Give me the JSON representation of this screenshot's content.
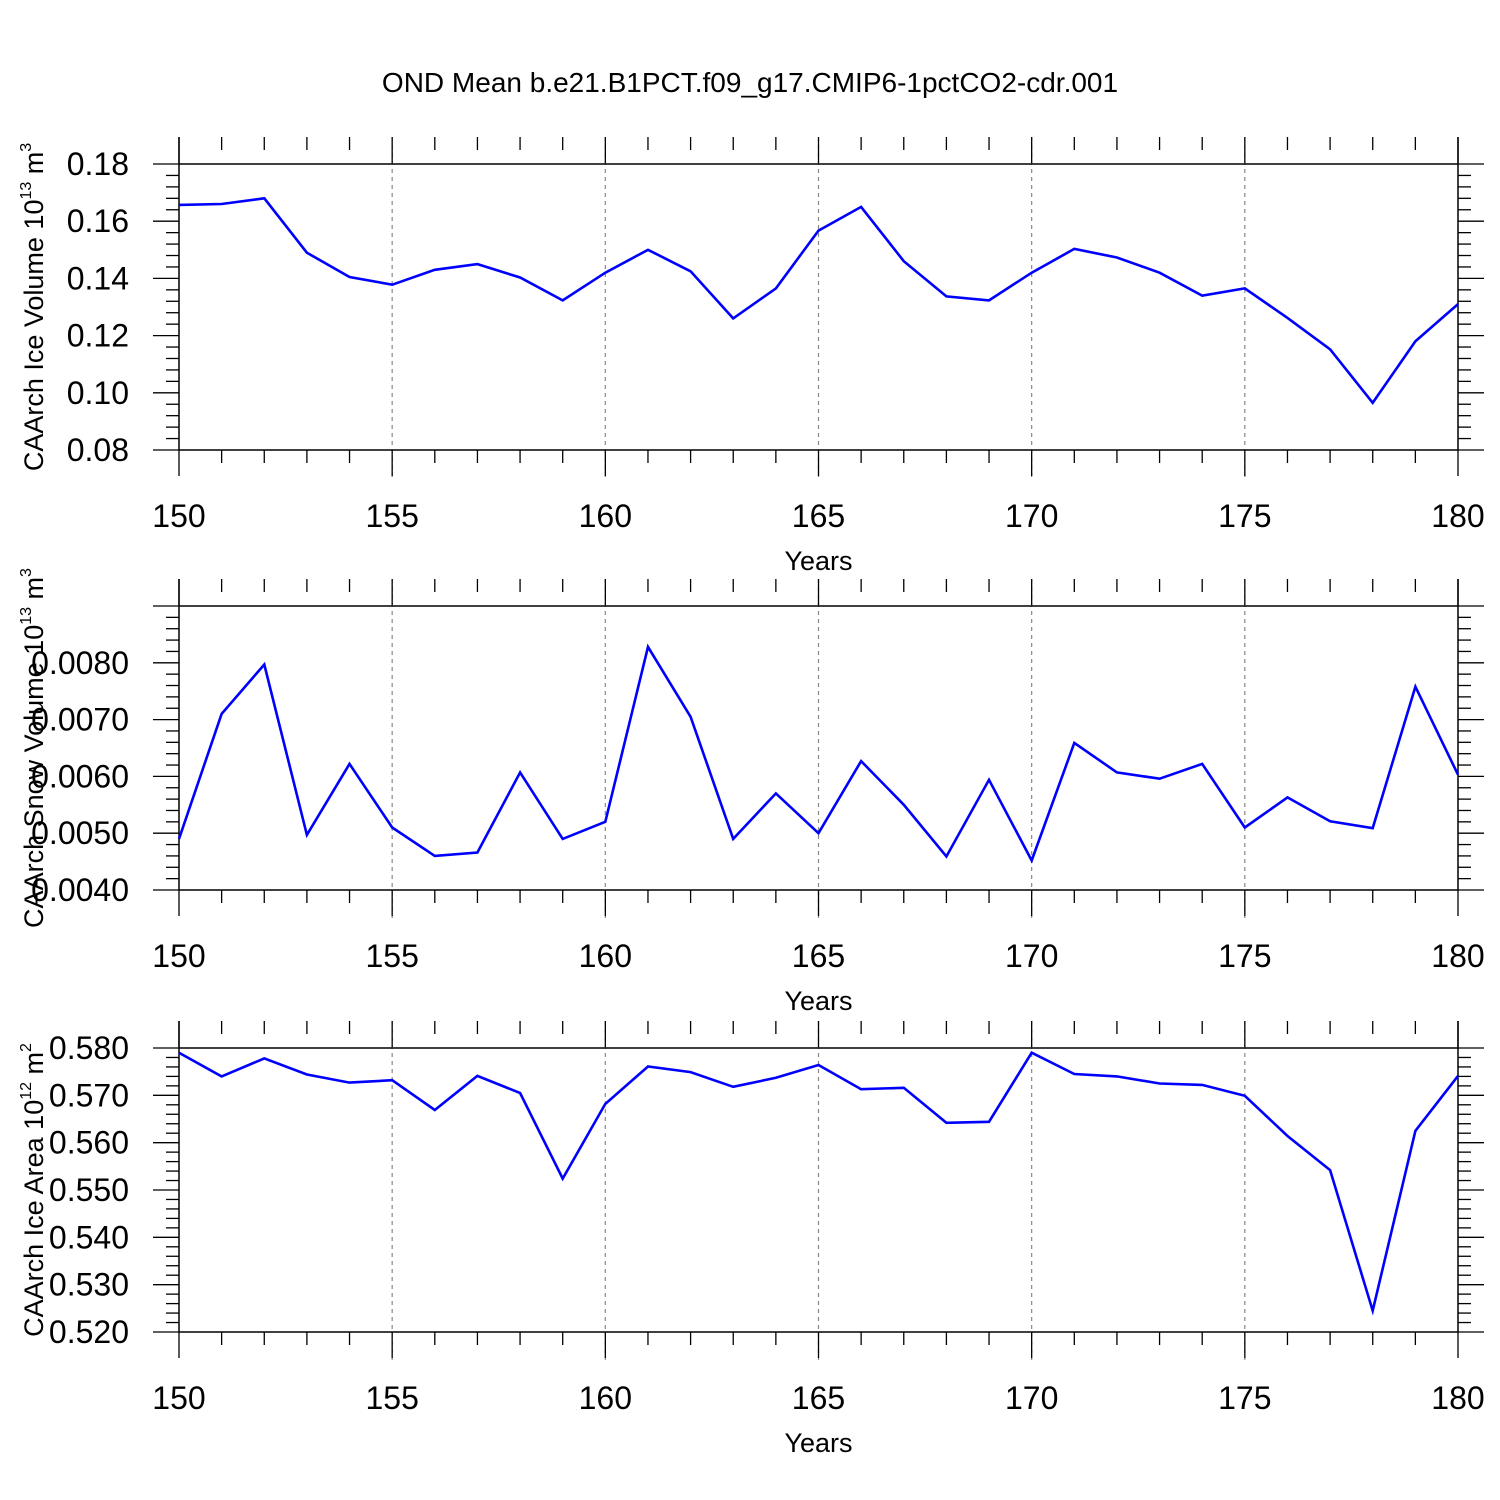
{
  "title": "OND Mean b.e21.B1PCT.f09_g17.CMIP6-1pctCO2-cdr.001",
  "line_color": "#0000ff",
  "chart_data": [
    {
      "type": "line",
      "ylabel": {
        "text": "CAArch Ice Volume 10",
        "exp": "13",
        "unit": " m",
        "unit_exp": "3"
      },
      "xlabel": "Years",
      "xlim": [
        150,
        180
      ],
      "ylim": [
        0.08,
        0.18
      ],
      "xticks": [
        "150",
        "155",
        "160",
        "165",
        "170",
        "175",
        "180"
      ],
      "yticks": [
        "0.08",
        "0.10",
        "0.12",
        "0.14",
        "0.16",
        "0.18"
      ],
      "x": [
        150,
        151,
        152,
        153,
        154,
        155,
        156,
        157,
        158,
        159,
        160,
        161,
        162,
        163,
        164,
        165,
        166,
        167,
        168,
        169,
        170,
        171,
        172,
        173,
        174,
        175,
        176,
        177,
        178,
        179,
        180
      ],
      "values": [
        0.1657,
        0.166,
        0.168,
        0.149,
        0.1405,
        0.1378,
        0.143,
        0.145,
        0.1403,
        0.1323,
        0.142,
        0.15,
        0.1425,
        0.126,
        0.1365,
        0.1567,
        0.165,
        0.146,
        0.1337,
        0.1323,
        0.142,
        0.1503,
        0.1473,
        0.142,
        0.134,
        0.1365,
        0.1262,
        0.1152,
        0.0965,
        0.118,
        0.131
      ]
    },
    {
      "type": "line",
      "ylabel": {
        "text": "CAArch Snow Volume 10",
        "exp": "13",
        "unit": " m",
        "unit_exp": "3"
      },
      "xlabel": "Years",
      "xlim": [
        150,
        180
      ],
      "ylim": [
        0.004,
        0.009
      ],
      "xticks": [
        "150",
        "155",
        "160",
        "165",
        "170",
        "175",
        "180"
      ],
      "yticks": [
        "0.0040",
        "0.0050",
        "0.0060",
        "0.0070",
        "0.0080"
      ],
      "x": [
        150,
        151,
        152,
        153,
        154,
        155,
        156,
        157,
        158,
        159,
        160,
        161,
        162,
        163,
        164,
        165,
        166,
        167,
        168,
        169,
        170,
        171,
        172,
        173,
        174,
        175,
        176,
        177,
        178,
        179,
        180
      ],
      "values": [
        0.0049,
        0.0071,
        0.00797,
        0.00497,
        0.00622,
        0.0051,
        0.0046,
        0.00466,
        0.00607,
        0.0049,
        0.0052,
        0.00828,
        0.00705,
        0.0049,
        0.0057,
        0.005,
        0.00627,
        0.0055,
        0.00459,
        0.00594,
        0.00452,
        0.00659,
        0.00607,
        0.00596,
        0.00622,
        0.0051,
        0.00563,
        0.00521,
        0.00509,
        0.00758,
        0.00603
      ]
    },
    {
      "type": "line",
      "ylabel": {
        "text": "CAArch Ice Area 10",
        "exp": "12",
        "unit": " m",
        "unit_exp": "2"
      },
      "xlabel": "Years",
      "xlim": [
        150,
        180
      ],
      "ylim": [
        0.52,
        0.58
      ],
      "xticks": [
        "150",
        "155",
        "160",
        "165",
        "170",
        "175",
        "180"
      ],
      "yticks": [
        "0.520",
        "0.530",
        "0.540",
        "0.550",
        "0.560",
        "0.570",
        "0.580"
      ],
      "x": [
        150,
        151,
        152,
        153,
        154,
        155,
        156,
        157,
        158,
        159,
        160,
        161,
        162,
        163,
        164,
        165,
        166,
        167,
        168,
        169,
        170,
        171,
        172,
        173,
        174,
        175,
        176,
        177,
        178,
        179,
        180
      ],
      "values": [
        0.579,
        0.574,
        0.5778,
        0.5744,
        0.5727,
        0.5732,
        0.5669,
        0.5741,
        0.5705,
        0.5524,
        0.5682,
        0.5761,
        0.5749,
        0.5718,
        0.5737,
        0.5764,
        0.5713,
        0.5716,
        0.5642,
        0.5644,
        0.579,
        0.5745,
        0.574,
        0.5725,
        0.5722,
        0.5699,
        0.5614,
        0.5542,
        0.5245,
        0.5625,
        0.5741
      ]
    }
  ]
}
